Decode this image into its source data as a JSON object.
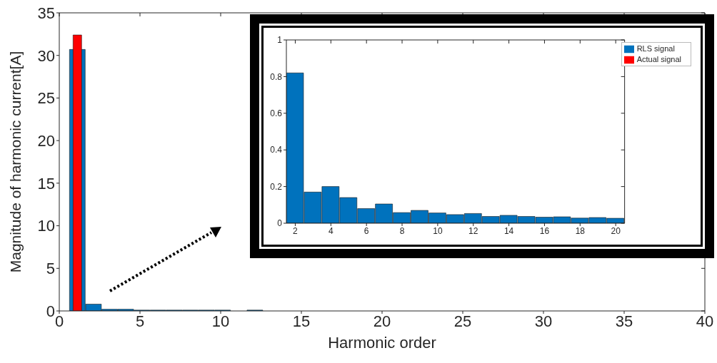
{
  "chart_data": [
    {
      "type": "bar",
      "xlabel": "Harmonic order",
      "ylabel": "Magnitude of harmonic current[A]",
      "xlim": [
        0,
        40
      ],
      "xticks": [
        0,
        5,
        10,
        15,
        20,
        25,
        30,
        35,
        40
      ],
      "ylim": [
        0,
        35
      ],
      "yticks": [
        0,
        5,
        10,
        15,
        20,
        25,
        30,
        35
      ],
      "grid": false,
      "legend": false,
      "series": [
        {
          "color": "#0072bd",
          "x": [
            1,
            2,
            3,
            4,
            5,
            6,
            7,
            8,
            9,
            10,
            11,
            12,
            13,
            14,
            15,
            16,
            17,
            18,
            19,
            20,
            21,
            22,
            23,
            24,
            25,
            26,
            27,
            28,
            29,
            30,
            31,
            32,
            33,
            34,
            35,
            36,
            37,
            38,
            39,
            40
          ],
          "values": [
            30.7,
            0.8,
            0.2,
            0.2,
            0.1,
            0.1,
            0.1,
            0.1,
            0.1,
            0.1,
            0,
            0.1,
            0,
            0,
            0,
            0,
            0,
            0,
            0,
            0,
            0,
            0,
            0,
            0,
            0,
            0,
            0,
            0,
            0,
            0,
            0,
            0,
            0,
            0,
            0,
            0,
            0,
            0,
            0,
            0
          ]
        },
        {
          "color": "#ff0000",
          "x": [
            1
          ],
          "values": [
            32.4
          ]
        }
      ]
    },
    {
      "type": "bar",
      "xlim": [
        1.5,
        20.5
      ],
      "xticks": [
        2,
        4,
        6,
        8,
        10,
        12,
        14,
        16,
        18,
        20
      ],
      "ylim": [
        0,
        1
      ],
      "yticks": [
        0,
        0.2,
        0.4,
        0.6,
        0.8,
        1
      ],
      "grid": false,
      "legend": "top right",
      "series": [
        {
          "name": "RLS signal",
          "color": "#0072bd",
          "x": [
            2,
            3,
            4,
            5,
            6,
            7,
            8,
            9,
            10,
            11,
            12,
            13,
            14,
            15,
            16,
            17,
            18,
            19,
            20
          ],
          "values": [
            0.82,
            0.17,
            0.2,
            0.14,
            0.08,
            0.105,
            0.058,
            0.07,
            0.056,
            0.047,
            0.053,
            0.037,
            0.043,
            0.037,
            0.033,
            0.035,
            0.028,
            0.031,
            0.027
          ]
        },
        {
          "name": "Actual signal",
          "color": "#ff0000"
        }
      ]
    }
  ]
}
